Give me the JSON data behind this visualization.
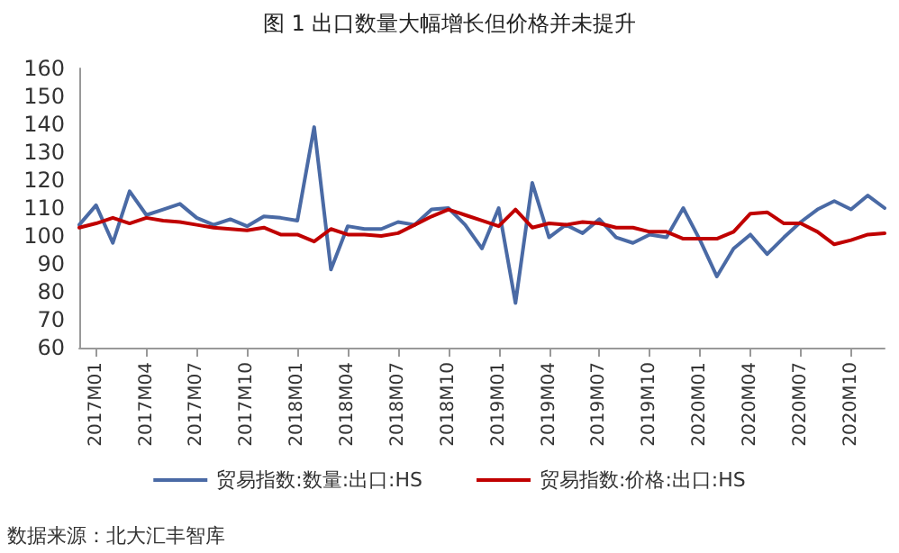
{
  "chart_data": {
    "type": "line",
    "title": "图 1 出口数量大幅增长但价格并未提升",
    "categories": [
      null,
      "2017M01",
      null,
      null,
      "2017M04",
      null,
      null,
      "2017M07",
      null,
      null,
      "2017M10",
      null,
      null,
      "2018M01",
      null,
      null,
      "2018M04",
      null,
      null,
      "2018M07",
      null,
      null,
      "2018M10",
      null,
      null,
      "2019M01",
      null,
      null,
      "2019M04",
      null,
      null,
      "2019M07",
      null,
      null,
      "2019M10",
      null,
      null,
      "2020M01",
      null,
      null,
      "2020M04",
      null,
      null,
      "2020M07",
      null,
      null,
      "2020M10",
      null,
      null
    ],
    "series": [
      {
        "name": "贸易指数:数量:出口:HS",
        "color": "#4a6aa5",
        "values": [
          104,
          111,
          97.5,
          116,
          107.5,
          109.5,
          111.5,
          106.5,
          104,
          106,
          103.5,
          107,
          106.5,
          105.5,
          139,
          88,
          103.5,
          102.5,
          102.5,
          105,
          104,
          109.5,
          110,
          104,
          95.5,
          110,
          76,
          119,
          99.5,
          104,
          101,
          106,
          99.5,
          97.5,
          100.5,
          99.5,
          110,
          98.5,
          85.5,
          95.5,
          100.5,
          93.5,
          99.5,
          105,
          109.5,
          112.5,
          109.5,
          114.5,
          110
        ]
      },
      {
        "name": "贸易指数:价格:出口:HS",
        "color": "#c00000",
        "values": [
          103,
          104.5,
          106.5,
          104.5,
          106.5,
          105.5,
          105,
          104,
          103,
          102.5,
          102,
          103,
          100.5,
          100.5,
          98,
          102.5,
          100.5,
          100.5,
          100,
          101,
          104,
          107,
          109.5,
          107.5,
          105.5,
          103.5,
          109.5,
          103,
          104.5,
          104,
          105,
          104.5,
          103,
          103,
          101.5,
          101.5,
          99,
          99,
          99,
          101.5,
          108,
          108.5,
          104.5,
          104.5,
          101.5,
          97,
          98.5,
          100.5,
          101
        ]
      }
    ],
    "ylim": [
      60,
      160
    ],
    "yticks": [
      60,
      70,
      80,
      90,
      100,
      110,
      120,
      130,
      140,
      150,
      160
    ],
    "grid": false,
    "legend": "bottom",
    "marker": "none",
    "line_style": "solid",
    "annotations": [
      "数据来源：北大汇丰智库"
    ]
  }
}
